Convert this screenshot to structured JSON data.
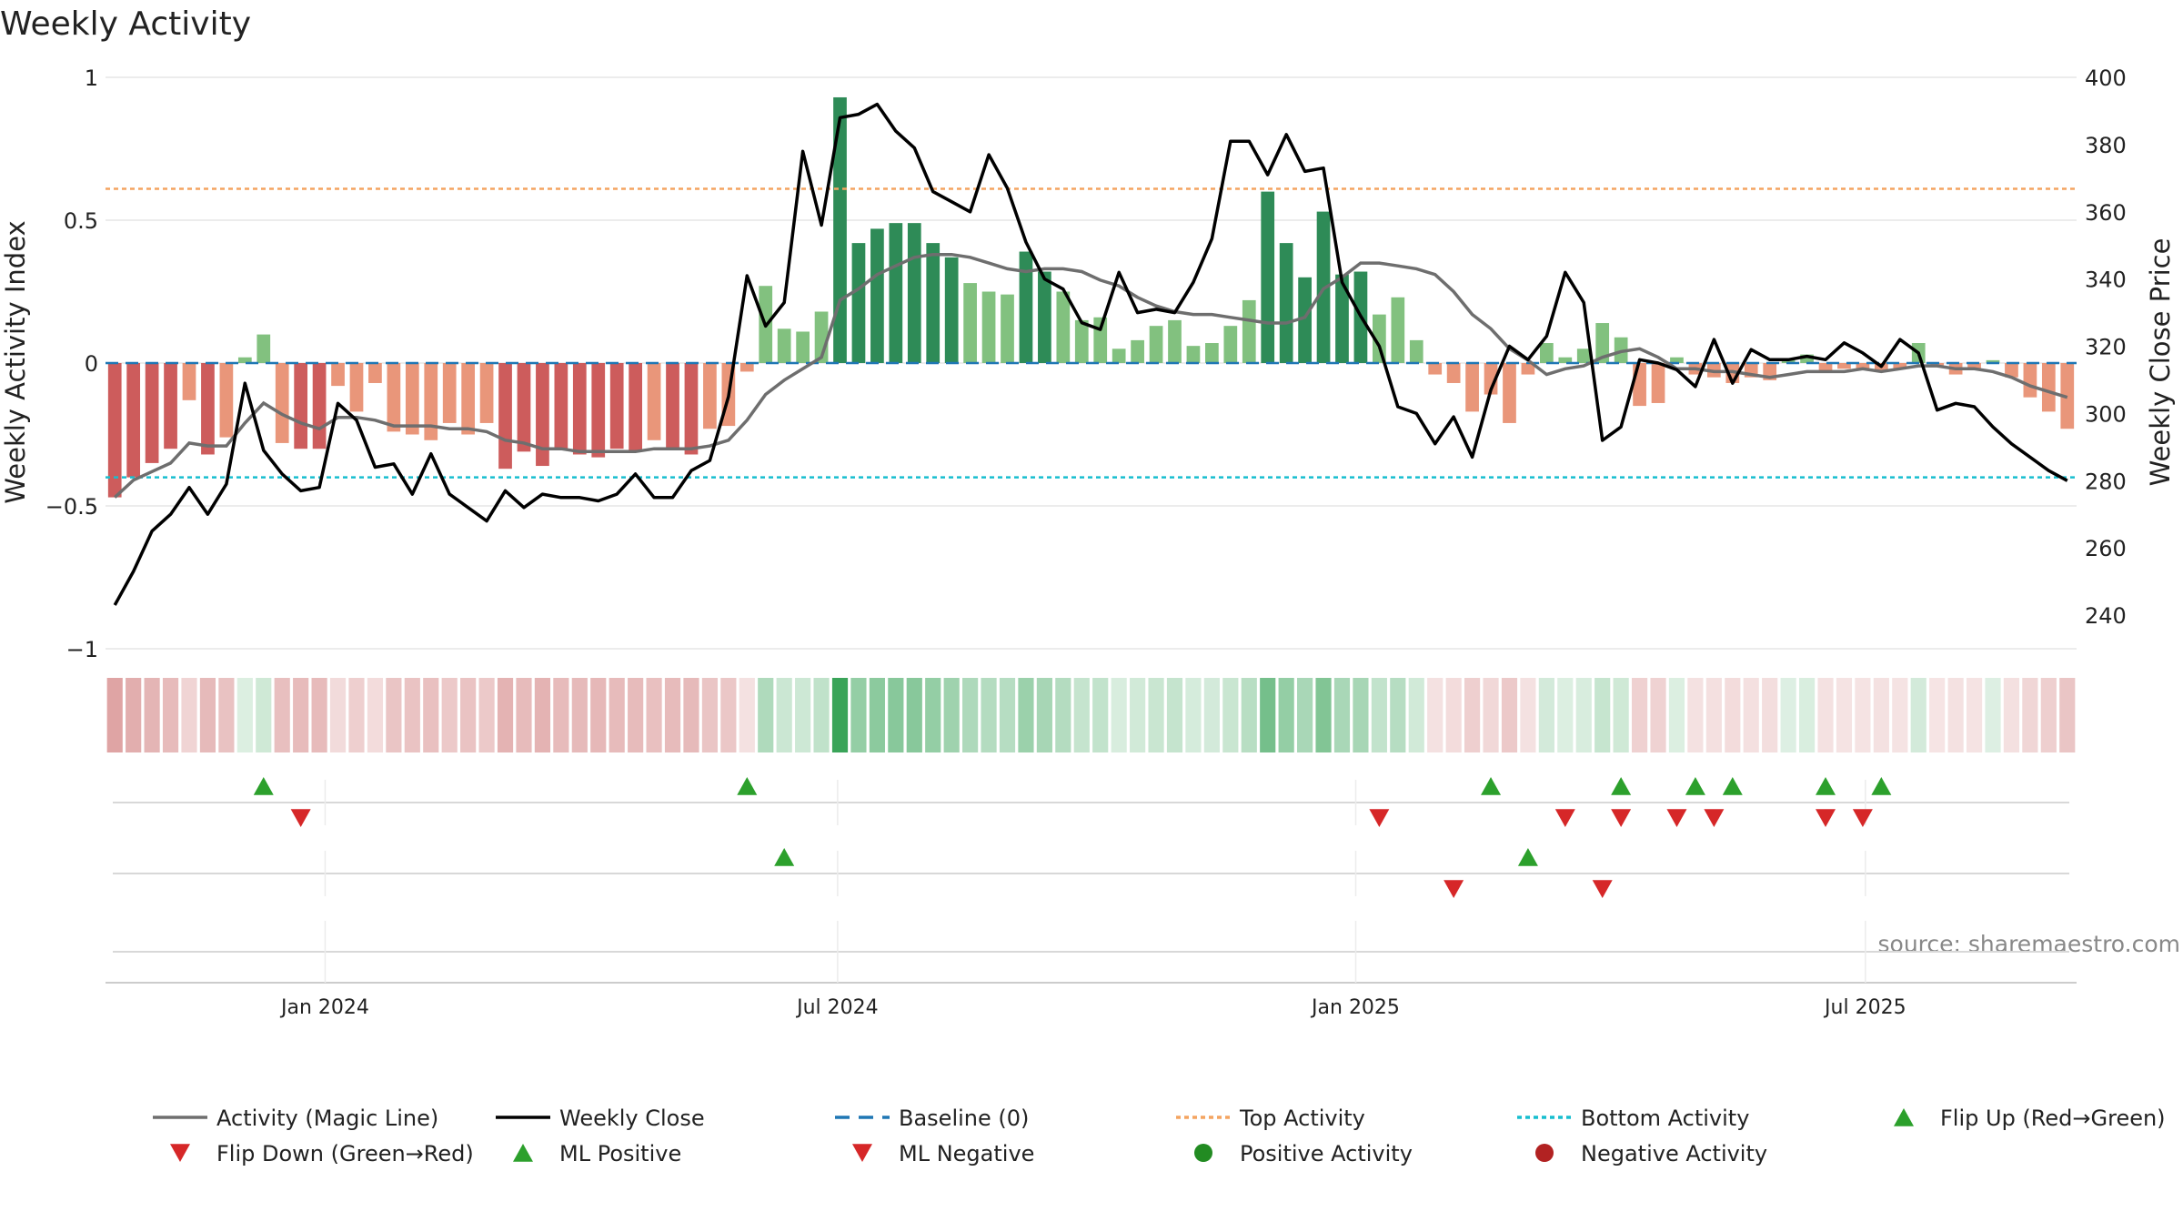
{
  "chart_data": {
    "type": "bar",
    "title": "Weekly Activity",
    "ylabel_left": "Weekly Activity Index",
    "ylabel_right": "Weekly Close Price",
    "ylim_left": [
      -1,
      1
    ],
    "ylim_right": [
      230,
      400
    ],
    "left_ticks": [
      "1",
      "0.5",
      "0",
      "−0.5",
      "−1"
    ],
    "left_tick_values": [
      1,
      0.5,
      0,
      -0.5,
      -1
    ],
    "right_ticks": [
      "400",
      "380",
      "360",
      "340",
      "320",
      "300",
      "280",
      "260",
      "240"
    ],
    "right_tick_values": [
      400,
      380,
      360,
      340,
      320,
      300,
      280,
      260,
      240
    ],
    "x_start": "2023-10-15",
    "x_end": "2025-09-14",
    "date_ticks": [
      {
        "label": "Jan 2024",
        "date": "2024-01-01"
      },
      {
        "label": "Jul 2024",
        "date": "2024-07-01"
      },
      {
        "label": "Jan 2025",
        "date": "2025-01-01"
      },
      {
        "label": "Jul 2025",
        "date": "2025-07-01"
      }
    ],
    "reference_lines": {
      "baseline": 0,
      "top_activity": 0.61,
      "bottom_activity": -0.4
    },
    "activity_values": [
      -0.47,
      -0.4,
      -0.35,
      -0.3,
      -0.13,
      -0.32,
      -0.26,
      0.02,
      0.1,
      -0.28,
      -0.3,
      -0.3,
      -0.08,
      -0.17,
      -0.07,
      -0.24,
      -0.25,
      -0.27,
      -0.21,
      -0.25,
      -0.21,
      -0.37,
      -0.31,
      -0.36,
      -0.3,
      -0.32,
      -0.33,
      -0.3,
      -0.31,
      -0.27,
      -0.3,
      -0.32,
      -0.23,
      -0.22,
      -0.03,
      0.27,
      0.12,
      0.11,
      0.18,
      0.93,
      0.42,
      0.47,
      0.49,
      0.49,
      0.42,
      0.37,
      0.28,
      0.25,
      0.24,
      0.39,
      0.32,
      0.25,
      0.15,
      0.16,
      0.05,
      0.08,
      0.13,
      0.15,
      0.06,
      0.07,
      0.13,
      0.22,
      0.6,
      0.42,
      0.3,
      0.53,
      0.31,
      0.32,
      0.17,
      0.23,
      0.08,
      -0.04,
      -0.07,
      -0.17,
      -0.11,
      -0.21,
      -0.04,
      0.07,
      0.02,
      0.05,
      0.14,
      0.09,
      -0.15,
      -0.14,
      0.02,
      -0.04,
      -0.05,
      -0.07,
      -0.05,
      -0.06,
      0.01,
      0.03,
      -0.03,
      -0.02,
      -0.02,
      -0.03,
      -0.02,
      0.07,
      -0.01,
      -0.04,
      -0.02,
      0.01,
      -0.05,
      -0.12,
      -0.17,
      -0.23
    ],
    "magic_line": [
      -0.47,
      -0.41,
      -0.38,
      -0.35,
      -0.28,
      -0.29,
      -0.29,
      -0.21,
      -0.14,
      -0.18,
      -0.21,
      -0.23,
      -0.19,
      -0.19,
      -0.2,
      -0.22,
      -0.22,
      -0.22,
      -0.23,
      -0.23,
      -0.24,
      -0.27,
      -0.28,
      -0.3,
      -0.3,
      -0.31,
      -0.31,
      -0.31,
      -0.31,
      -0.3,
      -0.3,
      -0.3,
      -0.29,
      -0.27,
      -0.2,
      -0.11,
      -0.06,
      -0.02,
      0.02,
      0.22,
      0.26,
      0.31,
      0.34,
      0.37,
      0.38,
      0.38,
      0.37,
      0.35,
      0.33,
      0.32,
      0.33,
      0.33,
      0.32,
      0.29,
      0.27,
      0.23,
      0.2,
      0.18,
      0.17,
      0.17,
      0.16,
      0.15,
      0.14,
      0.14,
      0.16,
      0.26,
      0.3,
      0.35,
      0.35,
      0.34,
      0.33,
      0.31,
      0.25,
      0.17,
      0.12,
      0.05,
      0.01,
      -0.04,
      -0.02,
      -0.01,
      0.02,
      0.04,
      0.05,
      0.02,
      -0.02,
      -0.02,
      -0.03,
      -0.03,
      -0.04,
      -0.05,
      -0.04,
      -0.03,
      -0.03,
      -0.03,
      -0.02,
      -0.03,
      -0.02,
      -0.01,
      -0.01,
      -0.02,
      -0.02,
      -0.03,
      -0.05,
      -0.08,
      -0.1,
      -0.12
    ],
    "weekly_close": [
      243,
      253,
      265,
      270,
      278,
      270,
      279,
      309,
      289,
      282,
      277,
      278,
      303,
      298,
      284,
      285,
      276,
      288,
      276,
      272,
      268,
      277,
      272,
      276,
      275,
      275,
      274,
      276,
      282,
      275,
      275,
      283,
      286,
      305,
      341,
      326,
      333,
      378,
      356,
      388,
      389,
      392,
      384,
      379,
      366,
      363,
      360,
      377,
      367,
      351,
      340,
      337,
      327,
      325,
      342,
      330,
      331,
      330,
      339,
      352,
      381,
      381,
      371,
      383,
      372,
      373,
      339,
      329,
      320,
      302,
      300,
      291,
      299,
      287,
      307,
      320,
      316,
      323,
      342,
      333,
      292,
      296,
      316,
      315,
      313,
      308,
      322,
      309,
      319,
      316,
      316,
      317,
      316,
      321,
      318,
      314,
      322,
      318,
      301,
      303,
      302,
      296,
      291,
      287,
      283,
      280
    ],
    "flip_up_weeks": [
      8,
      34,
      74,
      81,
      85,
      87,
      92,
      95
    ],
    "flip_down_weeks": [
      10,
      68,
      78,
      81,
      84,
      86,
      92,
      94
    ],
    "ml_positive_weeks": [
      36,
      76
    ],
    "ml_negative_weeks": [
      72,
      80
    ],
    "colors": {
      "strong_positive": "#2e8b57",
      "weak_positive": "#82c17f",
      "strong_negative": "#cd5c5c",
      "weak_negative": "#e9967a",
      "magic_line": "#6e6e6e",
      "weekly_close": "#000000",
      "baseline": "#1f77b4",
      "top_activity": "#f4a460",
      "bottom_activity": "#17becf",
      "flip_up": "#2ca02c",
      "flip_down": "#d62728",
      "grid": "#e6e6e6"
    }
  },
  "legend": [
    {
      "label": "Activity (Magic Line)",
      "kind": "line",
      "color": "#6e6e6e"
    },
    {
      "label": "Weekly Close",
      "kind": "line",
      "color": "#000000"
    },
    {
      "label": "Baseline (0)",
      "kind": "dashed",
      "color": "#1f77b4"
    },
    {
      "label": "Top Activity",
      "kind": "dotted",
      "color": "#f4a460"
    },
    {
      "label": "Bottom Activity",
      "kind": "dotted",
      "color": "#17becf"
    },
    {
      "label": "Flip Up (Red→Green)",
      "kind": "tri-up",
      "color": "#2ca02c"
    },
    {
      "label": "Flip Down (Green→Red)",
      "kind": "tri-down",
      "color": "#d62728"
    },
    {
      "label": "ML Positive",
      "kind": "tri-up",
      "color": "#2ca02c"
    },
    {
      "label": "ML Negative",
      "kind": "tri-down",
      "color": "#d62728"
    },
    {
      "label": "Positive Activity",
      "kind": "dot",
      "color": "#228b22"
    },
    {
      "label": "Negative Activity",
      "kind": "dot",
      "color": "#b22222"
    }
  ],
  "source": "source: sharemaestro.com"
}
